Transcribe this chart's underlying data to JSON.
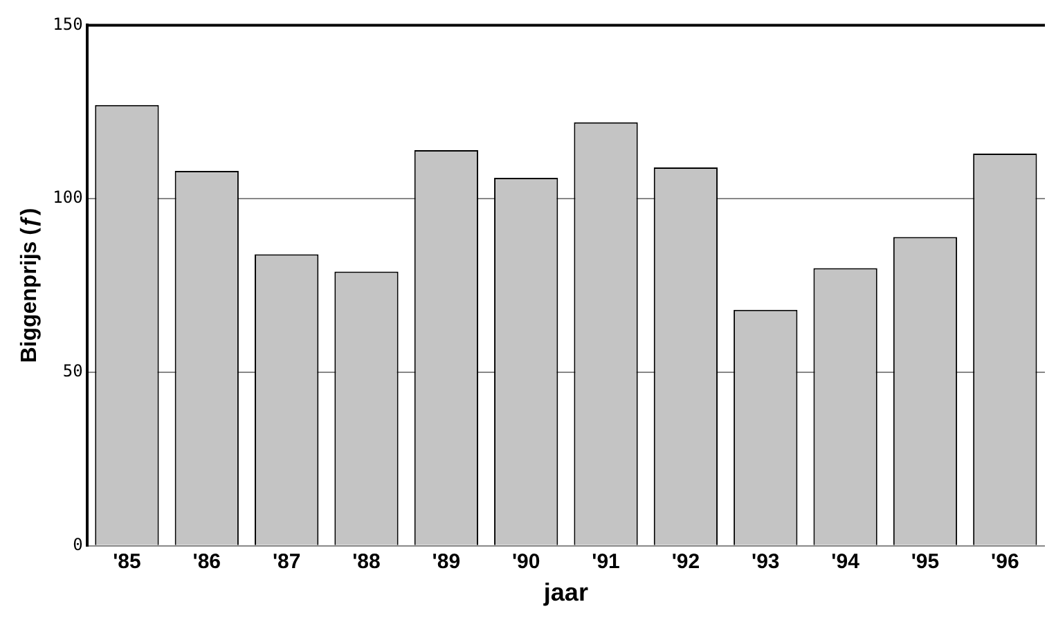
{
  "chart_data": {
    "type": "bar",
    "xlabel": "jaar",
    "ylabel": "Biggenprijs (ƒ)",
    "categories": [
      "'85",
      "'86",
      "'87",
      "'88",
      "'89",
      "'90",
      "'91",
      "'92",
      "'93",
      "'94",
      "'95",
      "'96"
    ],
    "values": [
      127,
      108,
      84,
      79,
      114,
      106,
      122,
      109,
      68,
      80,
      89,
      113
    ],
    "color": "#c4c4c4",
    "ylim": [
      0,
      150
    ],
    "yticks": [
      0,
      50,
      100,
      150
    ],
    "grid": "y",
    "legend": false
  }
}
